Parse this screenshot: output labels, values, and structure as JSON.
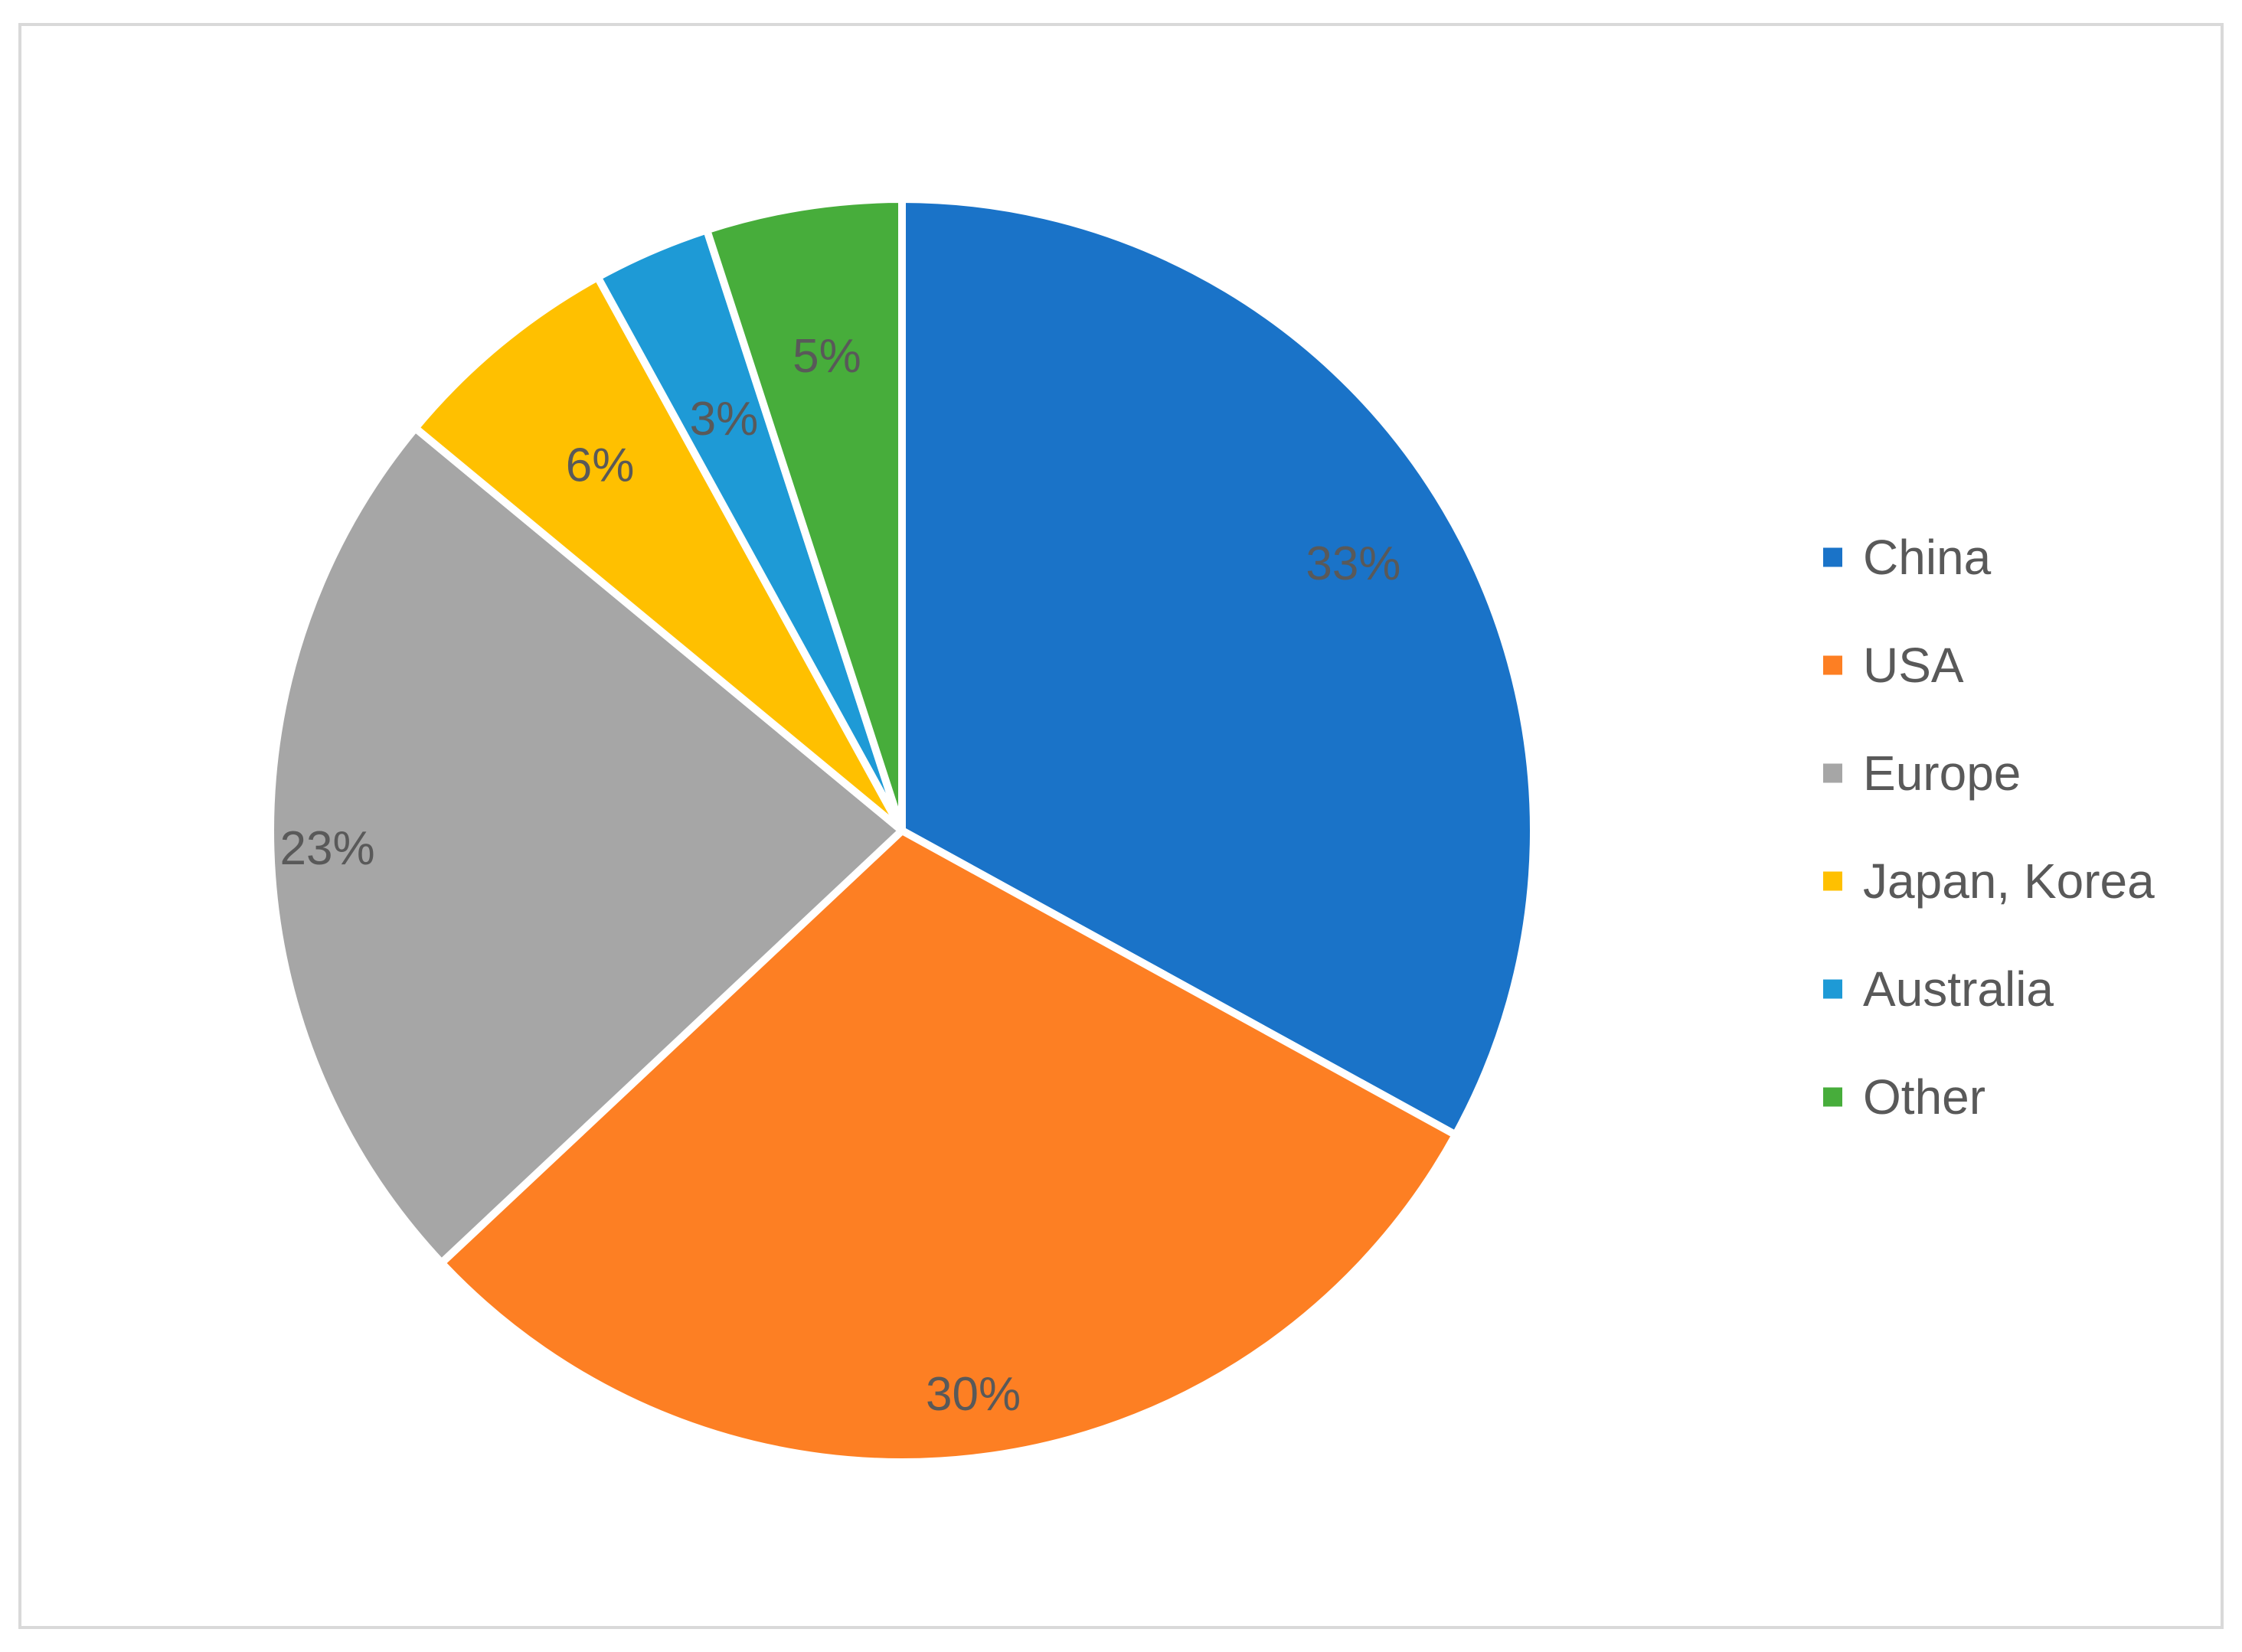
{
  "chart_data": {
    "type": "pie",
    "title": "",
    "categories": [
      "China",
      "USA",
      "Europe",
      "Japan, Korea",
      "Australia",
      "Other"
    ],
    "values": [
      33,
      30,
      23,
      6,
      3,
      5
    ],
    "unit": "%",
    "data_labels": [
      "33%",
      "30%",
      "23%",
      "6%",
      "3%",
      "5%"
    ],
    "colors": [
      "#1a73c8",
      "#fd7f23",
      "#a6a6a6",
      "#ffc000",
      "#1e9ad6",
      "#47ad3b"
    ],
    "start_angle": "12 o'clock",
    "direction": "clockwise",
    "legend": {
      "position": "right",
      "entries": [
        "China",
        "USA",
        "Europe",
        "Japan, Korea",
        "Australia",
        "Other"
      ]
    }
  }
}
